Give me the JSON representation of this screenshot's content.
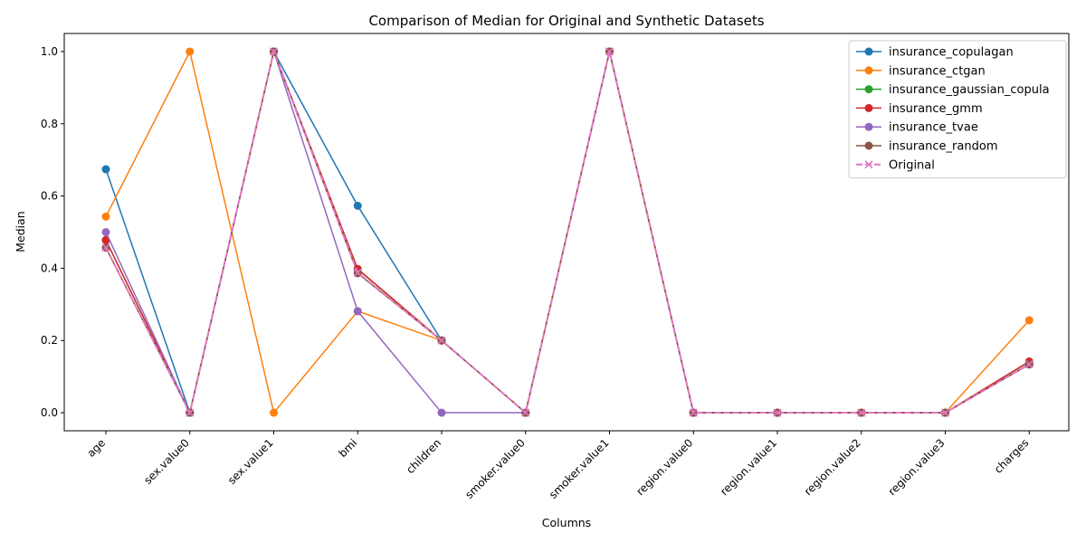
{
  "chart_data": {
    "type": "line",
    "title": "Comparison of Median for Original and Synthetic Datasets",
    "xlabel": "Columns",
    "ylabel": "Median",
    "categories": [
      "age",
      "sex.value0",
      "sex.value1",
      "bmi",
      "children",
      "smoker.value0",
      "smoker.value1",
      "region.value0",
      "region.value1",
      "region.value2",
      "region.value3",
      "charges"
    ],
    "ylim": [
      -0.05,
      1.05
    ],
    "yticks": [
      "0.0",
      "0.2",
      "0.4",
      "0.6",
      "0.8",
      "1.0"
    ],
    "grid": false,
    "legend_position": "top-right",
    "series": [
      {
        "name": "insurance_copulagan",
        "color": "#1f77b4",
        "marker": "circle",
        "dashed": false,
        "values": [
          0.674,
          0.0,
          1.0,
          0.573,
          0.2,
          0.0,
          1.0,
          0.0,
          0.0,
          0.0,
          0.0,
          0.134
        ]
      },
      {
        "name": "insurance_ctgan",
        "color": "#ff7f0e",
        "marker": "circle",
        "dashed": false,
        "values": [
          0.543,
          1.0,
          0.0,
          0.281,
          0.2,
          0.0,
          1.0,
          0.0,
          0.0,
          0.0,
          0.0,
          0.256
        ]
      },
      {
        "name": "insurance_gaussian_copula",
        "color": "#2ca02c",
        "marker": "circle",
        "dashed": false,
        "values": [
          0.478,
          0.0,
          1.0,
          0.397,
          0.2,
          0.0,
          1.0,
          0.0,
          0.0,
          0.0,
          0.0,
          0.141
        ]
      },
      {
        "name": "insurance_gmm",
        "color": "#d62728",
        "marker": "circle",
        "dashed": false,
        "values": [
          0.478,
          0.0,
          1.0,
          0.398,
          0.2,
          0.0,
          1.0,
          0.0,
          0.0,
          0.0,
          0.0,
          0.142
        ]
      },
      {
        "name": "insurance_tvae",
        "color": "#9467bd",
        "marker": "circle",
        "dashed": false,
        "values": [
          0.5,
          0.0,
          1.0,
          0.281,
          0.0,
          0.0,
          1.0,
          0.0,
          0.0,
          0.0,
          0.0,
          0.134
        ]
      },
      {
        "name": "insurance_random",
        "color": "#8c564b",
        "marker": "circle",
        "dashed": false,
        "values": [
          0.457,
          0.0,
          1.0,
          0.386,
          0.2,
          0.0,
          1.0,
          0.0,
          0.0,
          0.0,
          0.0,
          0.134
        ]
      },
      {
        "name": "Original",
        "color": "#e377c2",
        "marker": "x",
        "dashed": true,
        "values": [
          0.457,
          0.0,
          1.0,
          0.388,
          0.2,
          0.0,
          1.0,
          0.0,
          0.0,
          0.0,
          0.0,
          0.134
        ]
      }
    ]
  }
}
